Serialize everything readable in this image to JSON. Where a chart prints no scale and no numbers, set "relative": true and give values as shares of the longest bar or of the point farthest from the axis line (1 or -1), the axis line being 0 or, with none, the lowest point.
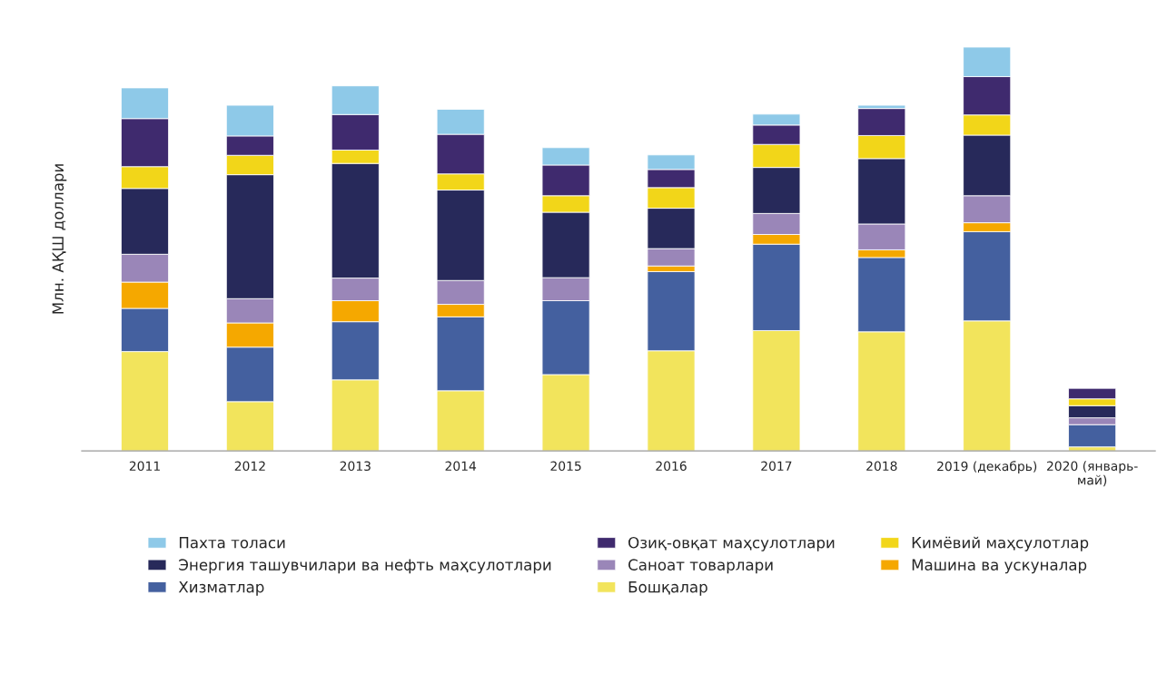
{
  "chart_data": {
    "type": "bar",
    "stacked": true,
    "relative": true,
    "ylabel": "Млн. АҚШ доллари",
    "legend": "bottom",
    "categories": [
      "2011",
      "2012",
      "2013",
      "2014",
      "2015",
      "2016",
      "2017",
      "2018",
      "2019 (декабрь)",
      "2020 (январь-\nмай)"
    ],
    "series": [
      {
        "name": "Бошқалар",
        "color": "#f2e45c",
        "values": [
          0.246,
          0.122,
          0.176,
          0.149,
          0.189,
          0.248,
          0.298,
          0.295,
          0.322,
          0.01
        ]
      },
      {
        "name": "Хизматлар",
        "color": "#44609f",
        "values": [
          0.107,
          0.135,
          0.144,
          0.183,
          0.183,
          0.196,
          0.214,
          0.184,
          0.221,
          0.055
        ]
      },
      {
        "name": "Машина ва ускуналар",
        "color": "#f5a800",
        "values": [
          0.065,
          0.06,
          0.052,
          0.031,
          null,
          0.014,
          0.024,
          0.019,
          0.022,
          null
        ]
      },
      {
        "name": "Саноат товарлари",
        "color": "#9a86b8",
        "values": [
          0.069,
          0.06,
          0.056,
          0.059,
          0.057,
          0.043,
          0.052,
          0.064,
          0.067,
          0.017
        ]
      },
      {
        "name": "Энергия ташувчилари ва нефть маҳсулотлари",
        "color": "#27295a",
        "values": [
          0.163,
          0.307,
          0.284,
          0.224,
          0.162,
          0.1,
          0.114,
          0.162,
          0.15,
          0.03
        ]
      },
      {
        "name": "Кимёвий маҳсулотлар",
        "color": "#f2d619",
        "values": [
          0.054,
          0.048,
          0.033,
          0.04,
          0.041,
          0.051,
          0.057,
          0.057,
          0.05,
          0.017
        ]
      },
      {
        "name": "Озиқ-овқат маҳсулотлари",
        "color": "#3f2a6e",
        "values": [
          0.119,
          0.048,
          0.088,
          0.098,
          0.076,
          0.045,
          0.048,
          0.067,
          0.095,
          0.026
        ]
      },
      {
        "name": "Пахта толаси",
        "color": "#8ec9e8",
        "values": [
          0.076,
          0.076,
          0.071,
          0.062,
          0.043,
          0.036,
          0.027,
          0.008,
          0.073,
          null
        ]
      }
    ]
  }
}
